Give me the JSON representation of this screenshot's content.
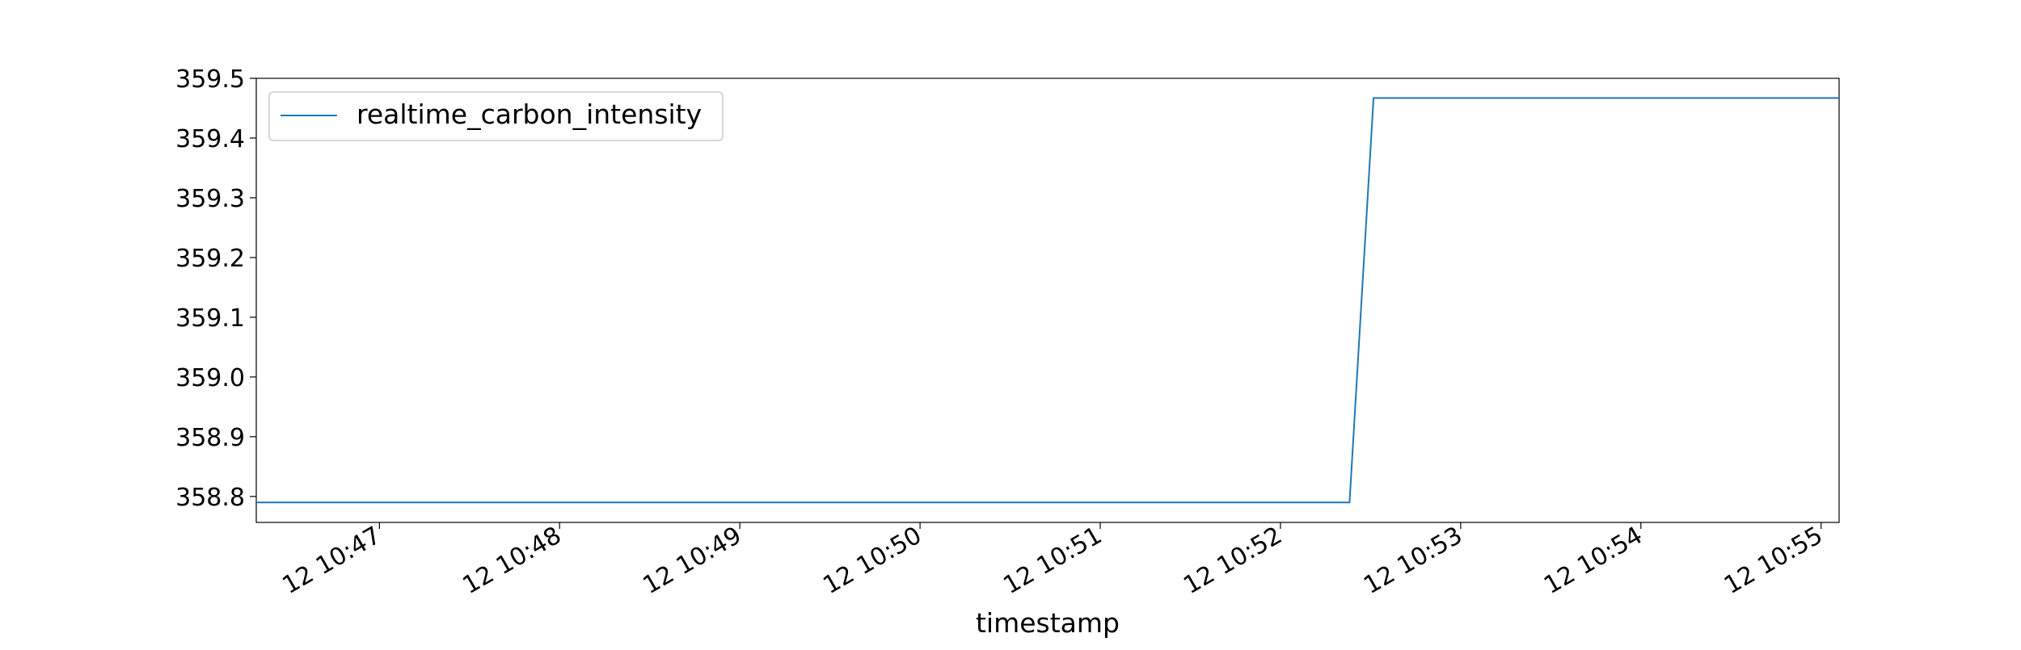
{
  "chart_data": {
    "type": "line",
    "title": "",
    "xlabel": "timestamp",
    "ylabel": "",
    "ylim": [
      358.7565,
      359.5
    ],
    "xlim": [
      "12 10:46:19",
      "12 10:55:06"
    ],
    "grid": false,
    "legend_position": "top-left",
    "y_ticks": [
      "358.8",
      "358.9",
      "359.0",
      "359.1",
      "359.2",
      "359.3",
      "359.4",
      "359.5"
    ],
    "x_ticks": [
      "12 10:47",
      "12 10:48",
      "12 10:49",
      "12 10:50",
      "12 10:51",
      "12 10:52",
      "12 10:53",
      "12 10:54",
      "12 10:55"
    ],
    "series": [
      {
        "name": "realtime_carbon_intensity",
        "color": "#1f77b4",
        "x": [
          "12 10:46:19",
          "12 10:52:23",
          "12 10:52:31",
          "12 10:55:06"
        ],
        "y": [
          358.79,
          358.79,
          359.467,
          359.467
        ]
      }
    ]
  }
}
